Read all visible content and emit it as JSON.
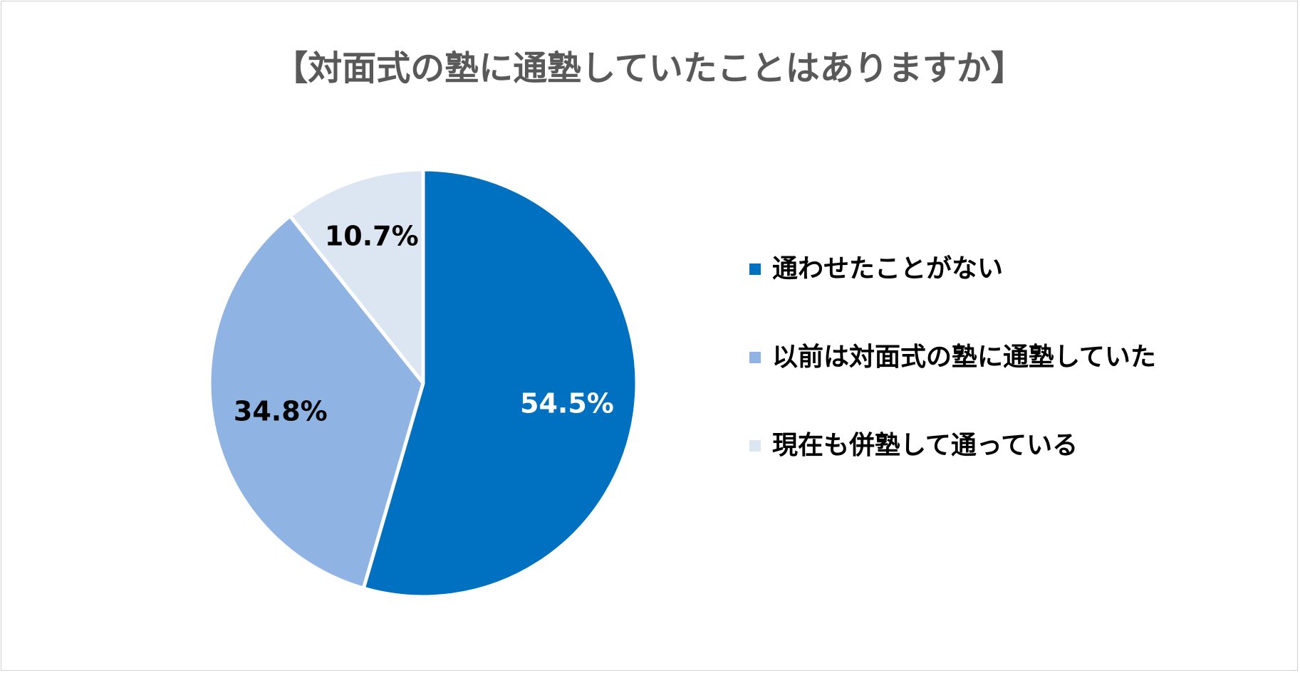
{
  "chart_data": {
    "type": "pie",
    "title": "【対面式の塾に通塾していたことはありますか】",
    "slices": [
      {
        "label": "通わせたことがない",
        "value": 54.5,
        "value_label": "54.5%",
        "color": "#0070C0",
        "label_color": "#ffffff"
      },
      {
        "label": "以前は対面式の塾に通塾していた",
        "value": 34.8,
        "value_label": "34.8%",
        "color": "#8FB4E3",
        "label_color": "#000000"
      },
      {
        "label": "現在も併塾して通っている",
        "value": 10.7,
        "value_label": "10.7%",
        "color": "#DCE6F2",
        "label_color": "#000000"
      }
    ],
    "start_angle": "12 o'clock",
    "direction": "clockwise",
    "legend_position": "right"
  }
}
